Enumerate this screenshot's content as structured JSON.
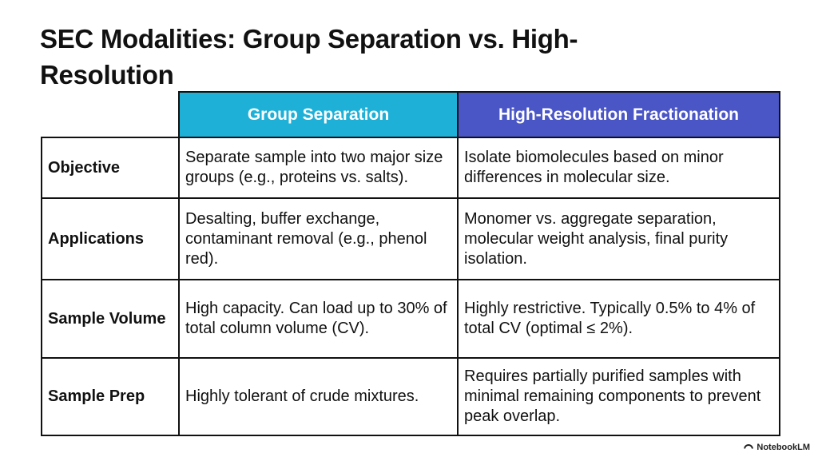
{
  "title": "SEC Modalities: Group Separation vs. High-Resolution",
  "columns": [
    "Group Separation",
    "High-Resolution Fractionation"
  ],
  "rows": [
    {
      "label": "Objective",
      "group": "Separate sample into two major size groups (e.g., proteins vs. salts).",
      "hires": "Isolate biomolecules based on minor differences in molecular size."
    },
    {
      "label": "Applications",
      "group": "Desalting, buffer exchange, contaminant removal (e.g., phenol red).",
      "hires": "Monomer vs. aggregate separation, molecular weight analysis, final purity isolation."
    },
    {
      "label": "Sample Volume",
      "group": "High capacity. Can load up to 30% of total column volume (CV).",
      "hires": "Highly restrictive. Typically 0.5% to 4% of total CV (optimal ≤ 2%)."
    },
    {
      "label": "Sample Prep",
      "group": "Highly tolerant of crude mixtures.",
      "hires": "Requires partially purified samples with minimal remaining components to prevent peak overlap."
    }
  ],
  "brand": "NotebookLM",
  "colors": {
    "group_header": "#1eb0d7",
    "hires_header": "#4a55c6"
  }
}
